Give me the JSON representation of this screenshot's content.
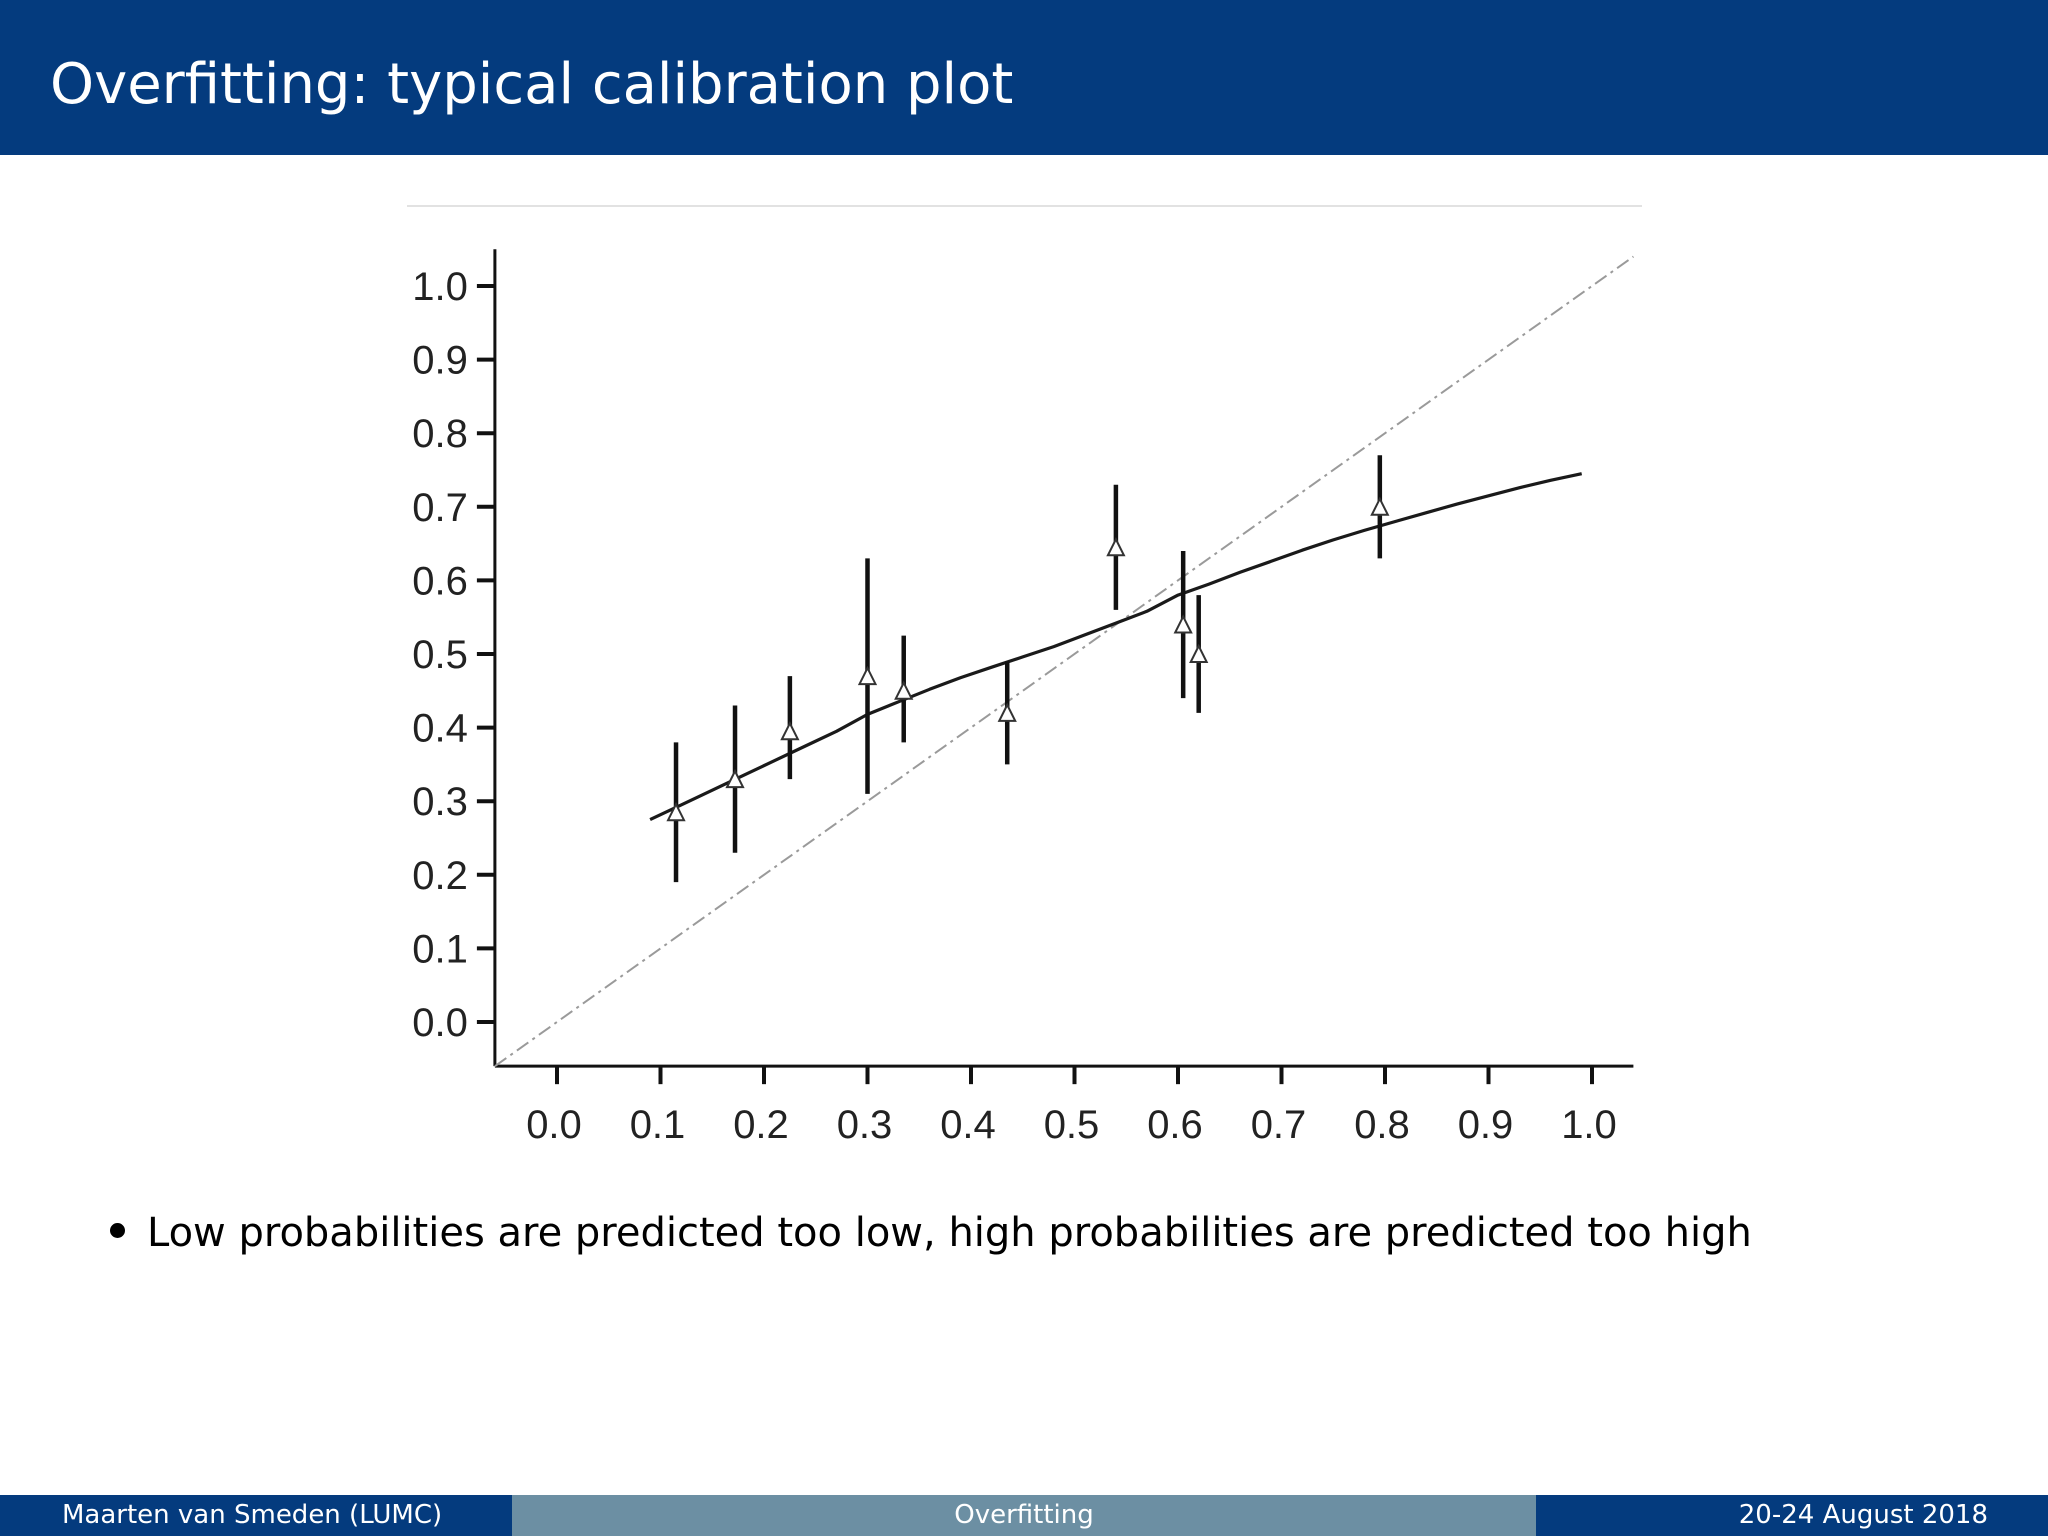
{
  "slide": {
    "title": "Overfitting: typical calibration plot",
    "bullets": [
      "Low probabilities are predicted too low, high probabilities are predicted too high"
    ]
  },
  "footer": {
    "author": "Maarten van Smeden  (LUMC)",
    "section": "Overfitting",
    "date": "20-24 August 2018"
  },
  "colors": {
    "header_bg": "#043b7e",
    "footer_mid_bg": "#6c8fa3",
    "curve": "#1a1a1a",
    "reference_line": "#9a9a9a"
  },
  "chart_data": {
    "type": "line",
    "title": "",
    "xlabel": "",
    "ylabel": "",
    "xlim": [
      -0.06,
      1.04
    ],
    "ylim": [
      -0.06,
      1.05
    ],
    "x_ticks": [
      "0.0",
      "0.1",
      "0.2",
      "0.3",
      "0.4",
      "0.5",
      "0.6",
      "0.7",
      "0.8",
      "0.9",
      "1.0"
    ],
    "y_ticks": [
      "0.0",
      "0.1",
      "0.2",
      "0.3",
      "0.4",
      "0.5",
      "0.6",
      "0.7",
      "0.8",
      "0.9",
      "1.0"
    ],
    "grid": false,
    "legend": false,
    "reference_line": {
      "style": "dash-dot",
      "x": [
        -0.06,
        1.04
      ],
      "y": [
        -0.06,
        1.04
      ]
    },
    "calibration_curve": {
      "x": [
        0.09,
        0.12,
        0.15,
        0.18,
        0.21,
        0.24,
        0.27,
        0.3,
        0.33,
        0.36,
        0.39,
        0.42,
        0.45,
        0.48,
        0.51,
        0.54,
        0.57,
        0.6,
        0.63,
        0.66,
        0.69,
        0.72,
        0.75,
        0.78,
        0.81,
        0.84,
        0.87,
        0.9,
        0.93,
        0.96,
        0.99
      ],
      "y": [
        0.275,
        0.295,
        0.315,
        0.335,
        0.355,
        0.375,
        0.395,
        0.418,
        0.435,
        0.452,
        0.468,
        0.482,
        0.496,
        0.51,
        0.526,
        0.542,
        0.558,
        0.58,
        0.595,
        0.611,
        0.626,
        0.641,
        0.655,
        0.668,
        0.68,
        0.692,
        0.704,
        0.715,
        0.726,
        0.736,
        0.745
      ]
    },
    "grouped_observations": [
      {
        "x": 0.115,
        "y": 0.285,
        "lower": 0.19,
        "upper": 0.38
      },
      {
        "x": 0.172,
        "y": 0.33,
        "lower": 0.23,
        "upper": 0.43
      },
      {
        "x": 0.225,
        "y": 0.395,
        "lower": 0.33,
        "upper": 0.47
      },
      {
        "x": 0.3,
        "y": 0.47,
        "lower": 0.31,
        "upper": 0.63
      },
      {
        "x": 0.335,
        "y": 0.45,
        "lower": 0.38,
        "upper": 0.525
      },
      {
        "x": 0.435,
        "y": 0.42,
        "lower": 0.35,
        "upper": 0.49
      },
      {
        "x": 0.54,
        "y": 0.645,
        "lower": 0.56,
        "upper": 0.73
      },
      {
        "x": 0.605,
        "y": 0.54,
        "lower": 0.44,
        "upper": 0.64
      },
      {
        "x": 0.62,
        "y": 0.5,
        "lower": 0.42,
        "upper": 0.58
      },
      {
        "x": 0.795,
        "y": 0.7,
        "lower": 0.63,
        "upper": 0.77
      }
    ]
  }
}
